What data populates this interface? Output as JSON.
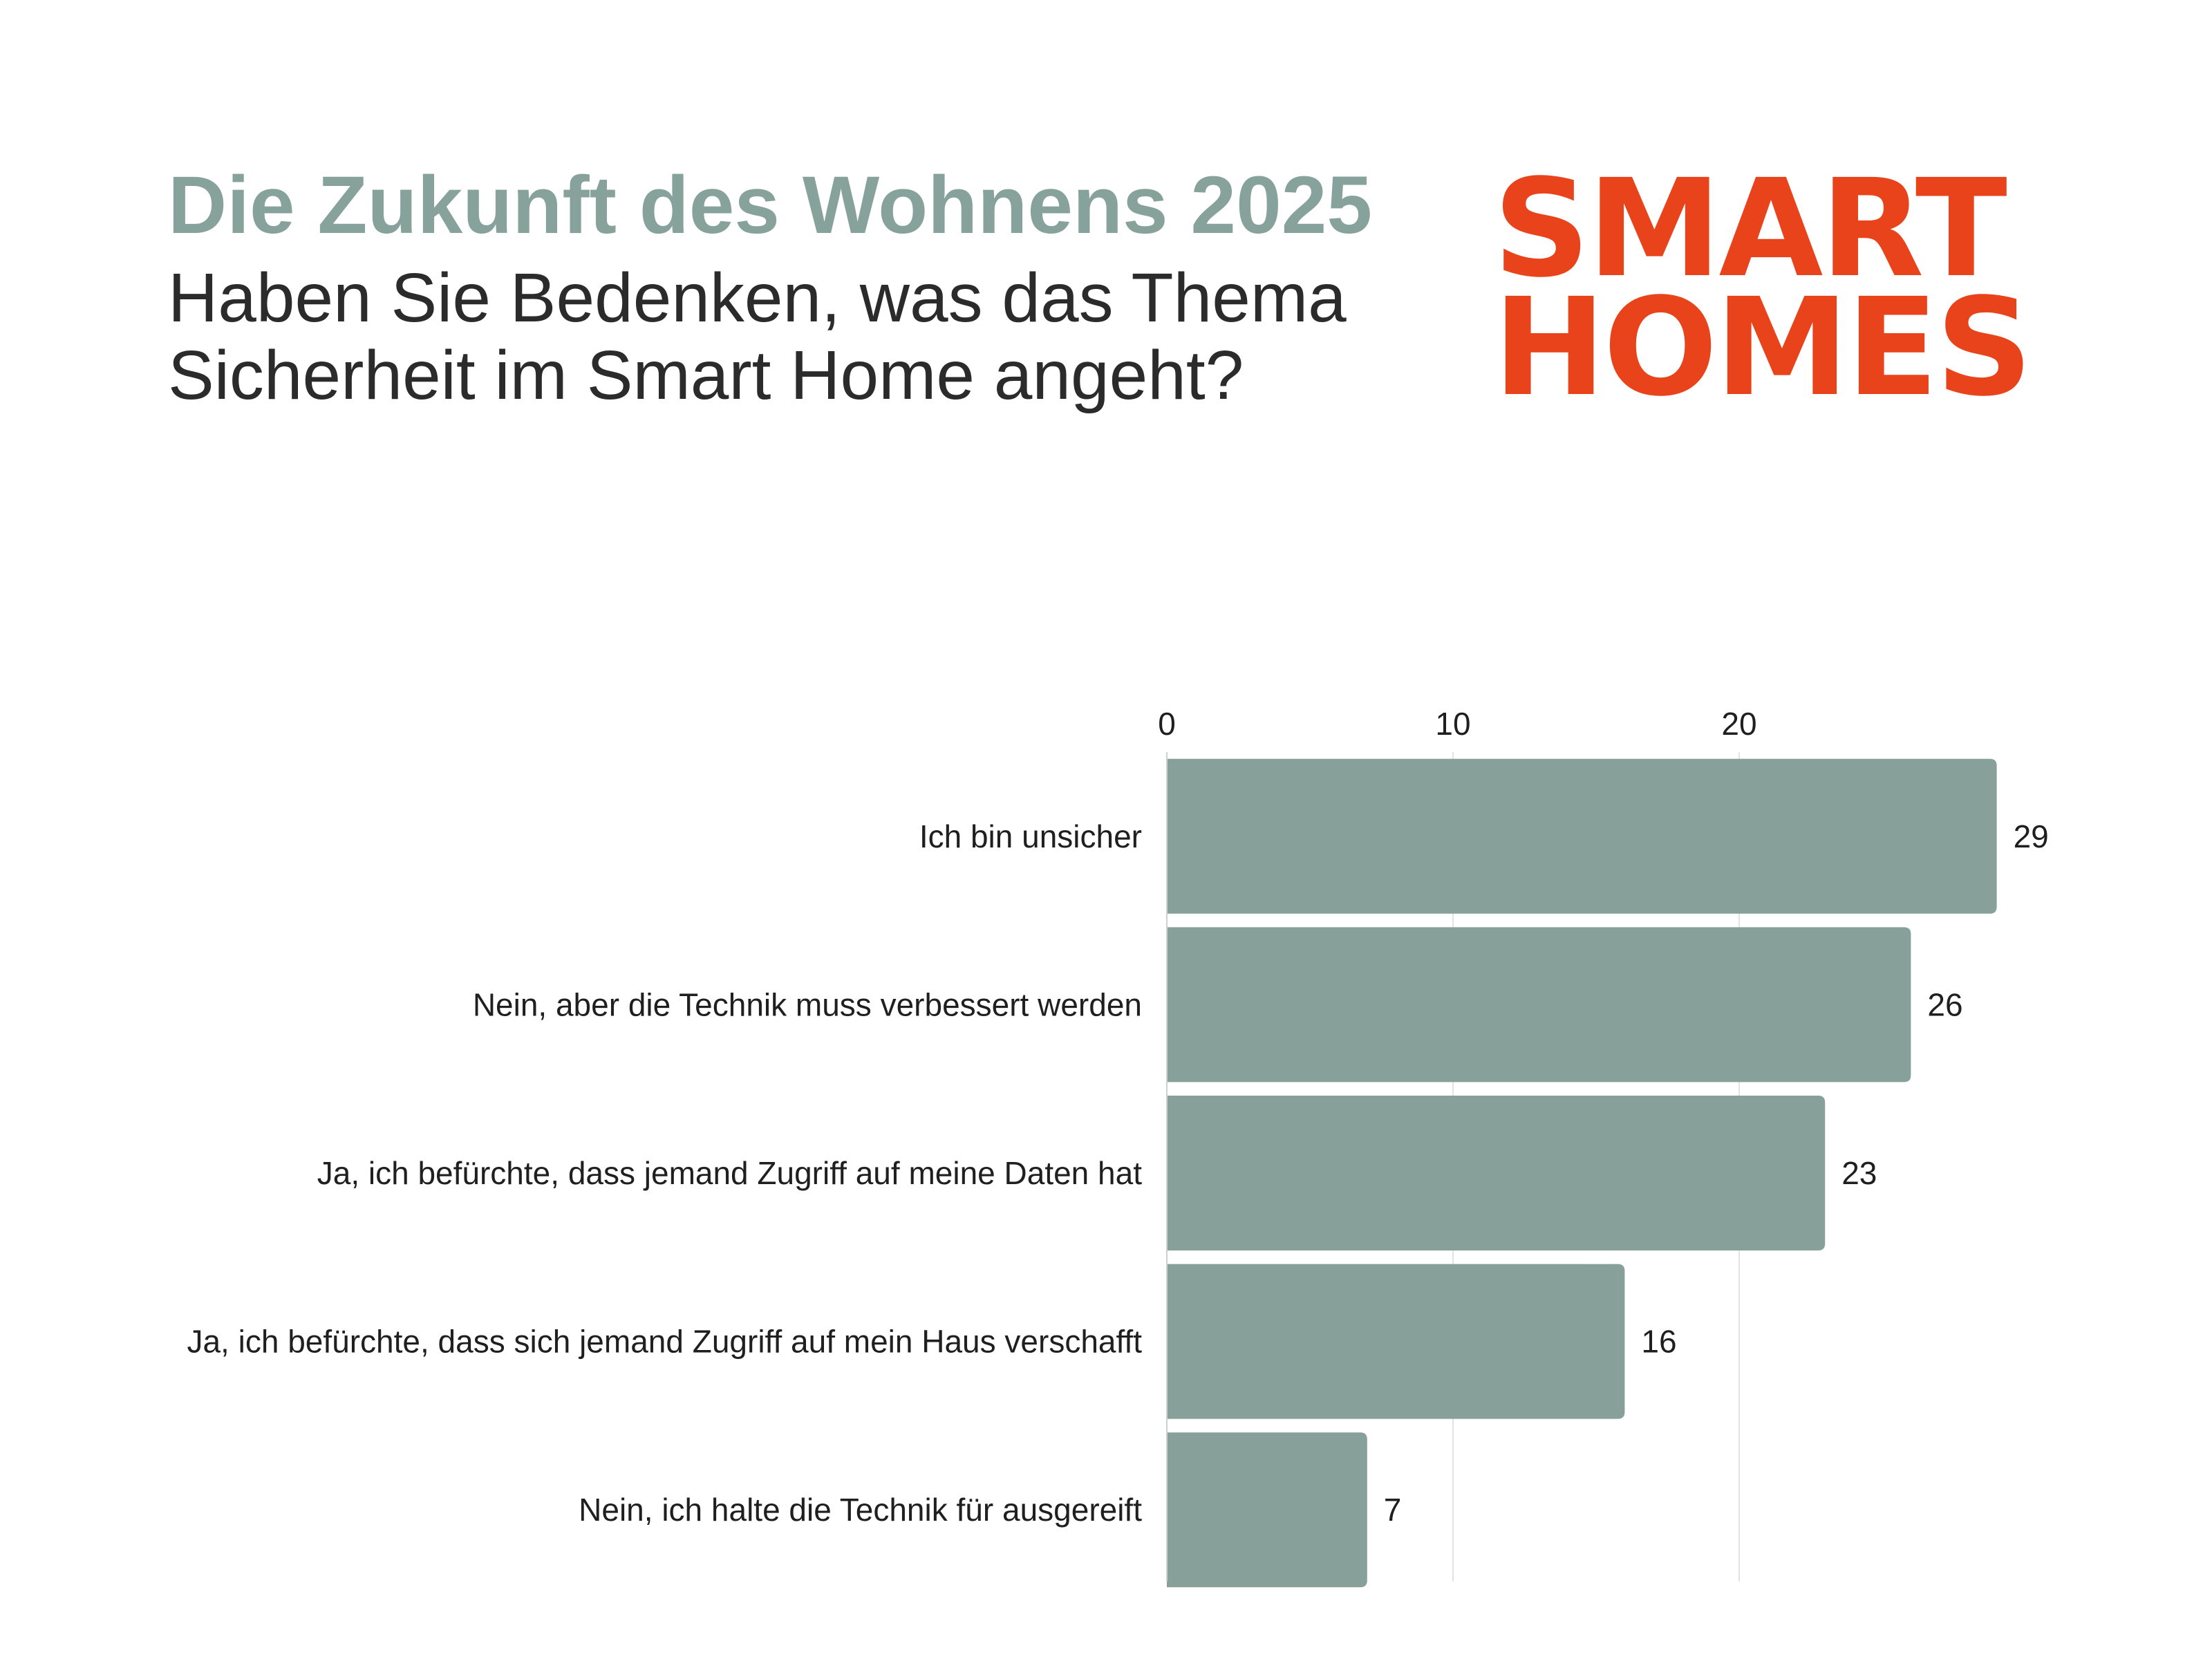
{
  "header": {
    "kicker": "Die Zukunft des Wohnens 2025",
    "question": "Haben Sie Bedenken, was das Thema Sicherheit im Smart Home angeht?"
  },
  "logo": {
    "line1": "SMART",
    "line2": "HOMES"
  },
  "colors": {
    "accent": "#E8431A",
    "kicker": "#87A19B",
    "bar": "#87A09A",
    "grid": "#E3E3E3",
    "text": "#1F1F1F"
  },
  "chart_data": {
    "type": "bar",
    "orientation": "horizontal",
    "categories": [
      "Ich bin unsicher",
      "Nein, aber die Technik muss verbessert werden",
      "Ja, ich befürchte, dass jemand Zugriff auf meine Daten hat",
      "Ja, ich befürchte, dass sich jemand Zugriff auf mein Haus verschafft",
      "Nein, ich halte die Technik für ausgereift"
    ],
    "values": [
      29,
      26,
      23,
      16,
      7
    ],
    "xticks": [
      0,
      10,
      20
    ],
    "xlim": [
      0,
      30
    ],
    "tick_position": "top",
    "data_labels": true,
    "grid": true,
    "legend": "none"
  }
}
